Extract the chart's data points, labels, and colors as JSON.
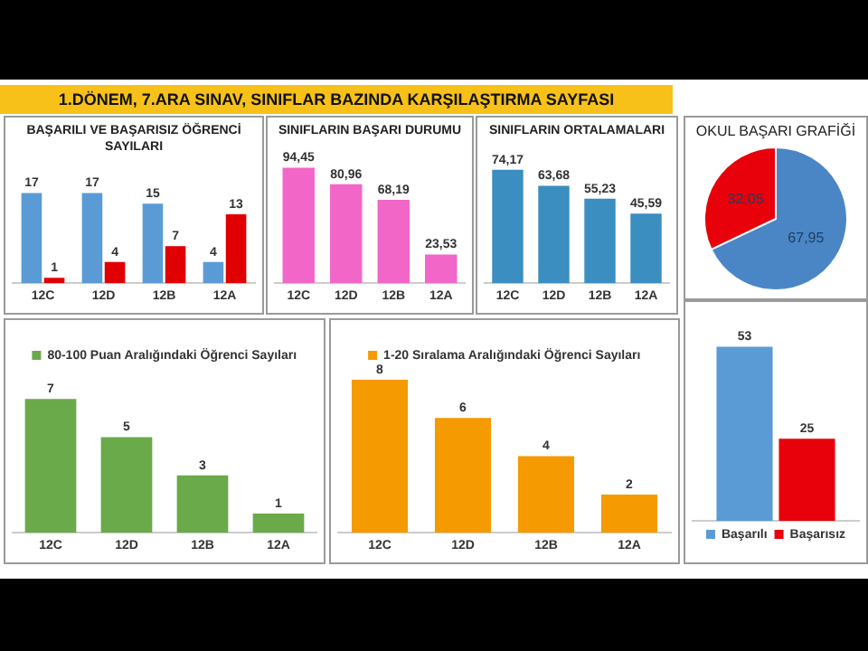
{
  "chart_data": [
    {
      "type": "other",
      "title": "1.DÖNEM,  7.ARA SINAV, SINIFLAR BAZINDA KARŞILAŞTIRMA SAYFASI"
    },
    {
      "type": "bar",
      "title": "BAŞARILI VE BAŞARISIZ ÖĞRENCİ SAYILARI",
      "categories": [
        "12C",
        "12D",
        "12B",
        "12A"
      ],
      "series": [
        {
          "color": "#5b9bd5",
          "values": [
            17,
            17,
            15,
            4
          ]
        },
        {
          "color": "#e00000",
          "values": [
            1,
            4,
            7,
            13
          ]
        }
      ],
      "data_labels": true,
      "tick_labels": "x",
      "grid": false,
      "legend": false
    },
    {
      "type": "bar",
      "title": "SINIFLARIN BAŞARI DURUMU",
      "categories": [
        "12C",
        "12D",
        "12B",
        "12A"
      ],
      "series": [
        {
          "color": "#f266c8",
          "values": [
            94.45,
            80.96,
            68.19,
            23.53
          ],
          "value_labels": [
            "94,45",
            "80,96",
            "68,19",
            "23,53"
          ]
        }
      ],
      "tick_labels": "x",
      "grid": false,
      "legend": false
    },
    {
      "type": "bar",
      "title": "SINIFLARIN ORTALAMALARI",
      "categories": [
        "12C",
        "12D",
        "12B",
        "12A"
      ],
      "series": [
        {
          "color": "#3a8ec0",
          "values": [
            74.17,
            63.68,
            55.23,
            45.59
          ],
          "value_labels": [
            "74,17",
            "63,68",
            "55,23",
            "45,59"
          ]
        }
      ],
      "tick_labels": "x",
      "grid": false,
      "legend": false
    },
    {
      "type": "pie",
      "title": "OKUL BAŞARI GRAFİĞİ",
      "categories": [
        null,
        null
      ],
      "values": [
        67.95,
        32.05
      ],
      "colors": [
        "#4a86c5",
        "#e8000a"
      ],
      "value_labels": [
        "67,95",
        "32,05"
      ],
      "legend": false
    },
    {
      "type": "bar",
      "categories": [
        "12C",
        "12D",
        "12B",
        "12A"
      ],
      "series": [
        {
          "name": "80-100 Puan Aralığındaki Öğrenci Sayıları",
          "color": "#6aaa4a",
          "values": [
            7,
            5,
            3,
            1
          ]
        }
      ],
      "data_labels": true,
      "tick_labels": "x",
      "grid": false,
      "legend": "top"
    },
    {
      "type": "bar",
      "categories": [
        "12C",
        "12D",
        "12B",
        "12A"
      ],
      "series": [
        {
          "name": "1-20 Sıralama Aralığındaki Öğrenci Sayıları",
          "color": "#f59a00",
          "values": [
            8,
            6,
            4,
            2
          ]
        }
      ],
      "data_labels": true,
      "tick_labels": "x",
      "grid": false,
      "legend": "top"
    },
    {
      "type": "bar",
      "categories": [
        null
      ],
      "series": [
        {
          "name": "Başarılı",
          "color": "#5b9bd5",
          "values": [
            53
          ]
        },
        {
          "name": "Başarısız",
          "color": "#e8000a",
          "values": [
            25
          ]
        }
      ],
      "data_labels": true,
      "tick_labels": false,
      "grid": false,
      "legend": "bottom"
    }
  ]
}
